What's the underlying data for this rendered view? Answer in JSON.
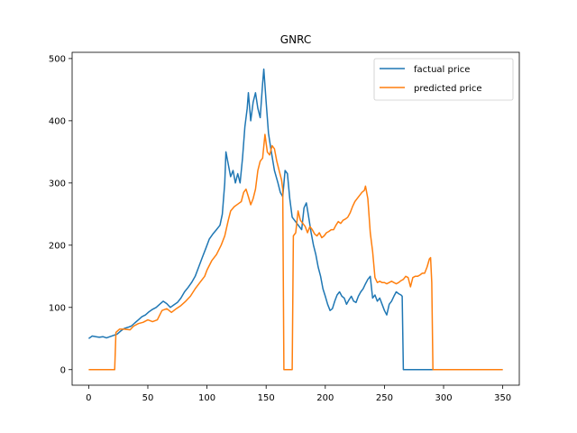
{
  "chart_data": {
    "type": "line",
    "title": "GNRC",
    "xlabel": "",
    "ylabel": "",
    "xlim": [
      -14,
      364
    ],
    "ylim": [
      -25,
      510
    ],
    "xticks": [
      0,
      50,
      100,
      150,
      200,
      250,
      300,
      350
    ],
    "yticks": [
      0,
      100,
      200,
      300,
      400,
      500
    ],
    "grid": false,
    "legend_position": "top-right",
    "series": [
      {
        "name": "factual price",
        "color": "#1f77b4",
        "points": [
          [
            0,
            50
          ],
          [
            3,
            54
          ],
          [
            6,
            53
          ],
          [
            9,
            52
          ],
          [
            12,
            53
          ],
          [
            15,
            51
          ],
          [
            18,
            53
          ],
          [
            21,
            55
          ],
          [
            24,
            57
          ],
          [
            27,
            62
          ],
          [
            30,
            66
          ],
          [
            33,
            68
          ],
          [
            36,
            70
          ],
          [
            39,
            75
          ],
          [
            42,
            80
          ],
          [
            45,
            85
          ],
          [
            48,
            88
          ],
          [
            51,
            93
          ],
          [
            54,
            97
          ],
          [
            57,
            100
          ],
          [
            60,
            105
          ],
          [
            63,
            110
          ],
          [
            66,
            106
          ],
          [
            69,
            100
          ],
          [
            72,
            104
          ],
          [
            75,
            108
          ],
          [
            78,
            115
          ],
          [
            81,
            125
          ],
          [
            84,
            132
          ],
          [
            87,
            140
          ],
          [
            90,
            150
          ],
          [
            93,
            165
          ],
          [
            96,
            180
          ],
          [
            99,
            195
          ],
          [
            102,
            210
          ],
          [
            105,
            218
          ],
          [
            108,
            225
          ],
          [
            111,
            232
          ],
          [
            113,
            250
          ],
          [
            115,
            300
          ],
          [
            116,
            350
          ],
          [
            118,
            330
          ],
          [
            120,
            310
          ],
          [
            122,
            320
          ],
          [
            124,
            300
          ],
          [
            126,
            315
          ],
          [
            128,
            300
          ],
          [
            130,
            340
          ],
          [
            132,
            390
          ],
          [
            134,
            420
          ],
          [
            135,
            445
          ],
          [
            137,
            400
          ],
          [
            139,
            430
          ],
          [
            141,
            445
          ],
          [
            143,
            420
          ],
          [
            145,
            405
          ],
          [
            147,
            460
          ],
          [
            148,
            483
          ],
          [
            150,
            430
          ],
          [
            152,
            380
          ],
          [
            154,
            355
          ],
          [
            157,
            320
          ],
          [
            160,
            300
          ],
          [
            162,
            285
          ],
          [
            164,
            278
          ],
          [
            166,
            320
          ],
          [
            168,
            315
          ],
          [
            170,
            275
          ],
          [
            172,
            245
          ],
          [
            174,
            240
          ],
          [
            176,
            235
          ],
          [
            178,
            230
          ],
          [
            180,
            225
          ],
          [
            182,
            260
          ],
          [
            184,
            268
          ],
          [
            186,
            245
          ],
          [
            188,
            220
          ],
          [
            190,
            200
          ],
          [
            192,
            185
          ],
          [
            194,
            165
          ],
          [
            196,
            150
          ],
          [
            198,
            130
          ],
          [
            200,
            118
          ],
          [
            202,
            105
          ],
          [
            204,
            95
          ],
          [
            206,
            98
          ],
          [
            208,
            110
          ],
          [
            210,
            120
          ],
          [
            212,
            125
          ],
          [
            214,
            118
          ],
          [
            216,
            115
          ],
          [
            218,
            105
          ],
          [
            220,
            112
          ],
          [
            222,
            118
          ],
          [
            224,
            110
          ],
          [
            226,
            108
          ],
          [
            228,
            118
          ],
          [
            230,
            125
          ],
          [
            232,
            130
          ],
          [
            234,
            138
          ],
          [
            236,
            145
          ],
          [
            238,
            150
          ],
          [
            240,
            115
          ],
          [
            242,
            120
          ],
          [
            244,
            110
          ],
          [
            246,
            115
          ],
          [
            248,
            105
          ],
          [
            250,
            95
          ],
          [
            252,
            88
          ],
          [
            254,
            105
          ],
          [
            256,
            110
          ],
          [
            258,
            118
          ],
          [
            260,
            125
          ],
          [
            262,
            122
          ],
          [
            264,
            120
          ],
          [
            265,
            118
          ],
          [
            266,
            0
          ],
          [
            280,
            0
          ],
          [
            300,
            0
          ],
          [
            320,
            0
          ],
          [
            340,
            0
          ],
          [
            350,
            0
          ]
        ]
      },
      {
        "name": "predicted price",
        "color": "#ff7f0e",
        "points": [
          [
            0,
            0
          ],
          [
            10,
            0
          ],
          [
            20,
            0
          ],
          [
            22,
            0
          ],
          [
            23,
            60
          ],
          [
            26,
            65
          ],
          [
            30,
            65
          ],
          [
            35,
            64
          ],
          [
            38,
            70
          ],
          [
            42,
            74
          ],
          [
            46,
            76
          ],
          [
            50,
            80
          ],
          [
            54,
            77
          ],
          [
            58,
            80
          ],
          [
            62,
            95
          ],
          [
            66,
            98
          ],
          [
            70,
            92
          ],
          [
            74,
            98
          ],
          [
            78,
            103
          ],
          [
            82,
            110
          ],
          [
            86,
            118
          ],
          [
            90,
            130
          ],
          [
            94,
            140
          ],
          [
            98,
            150
          ],
          [
            100,
            160
          ],
          [
            104,
            175
          ],
          [
            108,
            185
          ],
          [
            112,
            200
          ],
          [
            115,
            215
          ],
          [
            118,
            240
          ],
          [
            120,
            255
          ],
          [
            123,
            262
          ],
          [
            126,
            266
          ],
          [
            129,
            270
          ],
          [
            131,
            285
          ],
          [
            133,
            290
          ],
          [
            135,
            278
          ],
          [
            137,
            265
          ],
          [
            139,
            275
          ],
          [
            141,
            290
          ],
          [
            143,
            320
          ],
          [
            145,
            335
          ],
          [
            147,
            340
          ],
          [
            149,
            378
          ],
          [
            151,
            350
          ],
          [
            153,
            345
          ],
          [
            155,
            360
          ],
          [
            157,
            355
          ],
          [
            159,
            335
          ],
          [
            161,
            320
          ],
          [
            163,
            305
          ],
          [
            164,
            290
          ],
          [
            165,
            0
          ],
          [
            168,
            0
          ],
          [
            172,
            0
          ],
          [
            173,
            215
          ],
          [
            175,
            220
          ],
          [
            177,
            255
          ],
          [
            179,
            240
          ],
          [
            181,
            235
          ],
          [
            183,
            230
          ],
          [
            185,
            220
          ],
          [
            187,
            230
          ],
          [
            189,
            225
          ],
          [
            191,
            218
          ],
          [
            193,
            215
          ],
          [
            195,
            220
          ],
          [
            197,
            212
          ],
          [
            199,
            215
          ],
          [
            201,
            220
          ],
          [
            203,
            222
          ],
          [
            205,
            225
          ],
          [
            207,
            225
          ],
          [
            209,
            232
          ],
          [
            211,
            238
          ],
          [
            213,
            235
          ],
          [
            215,
            240
          ],
          [
            217,
            242
          ],
          [
            219,
            245
          ],
          [
            221,
            252
          ],
          [
            223,
            262
          ],
          [
            225,
            270
          ],
          [
            227,
            275
          ],
          [
            229,
            280
          ],
          [
            231,
            285
          ],
          [
            233,
            288
          ],
          [
            234,
            295
          ],
          [
            236,
            275
          ],
          [
            238,
            220
          ],
          [
            240,
            190
          ],
          [
            242,
            148
          ],
          [
            244,
            140
          ],
          [
            246,
            142
          ],
          [
            248,
            140
          ],
          [
            250,
            140
          ],
          [
            252,
            138
          ],
          [
            254,
            140
          ],
          [
            256,
            142
          ],
          [
            258,
            140
          ],
          [
            260,
            138
          ],
          [
            262,
            140
          ],
          [
            264,
            143
          ],
          [
            266,
            145
          ],
          [
            268,
            150
          ],
          [
            270,
            148
          ],
          [
            272,
            133
          ],
          [
            274,
            148
          ],
          [
            276,
            150
          ],
          [
            278,
            150
          ],
          [
            280,
            152
          ],
          [
            282,
            155
          ],
          [
            284,
            155
          ],
          [
            286,
            165
          ],
          [
            288,
            178
          ],
          [
            289,
            180
          ],
          [
            290,
            140
          ],
          [
            291,
            0
          ],
          [
            300,
            0
          ],
          [
            320,
            0
          ],
          [
            340,
            0
          ],
          [
            350,
            0
          ]
        ]
      }
    ]
  }
}
